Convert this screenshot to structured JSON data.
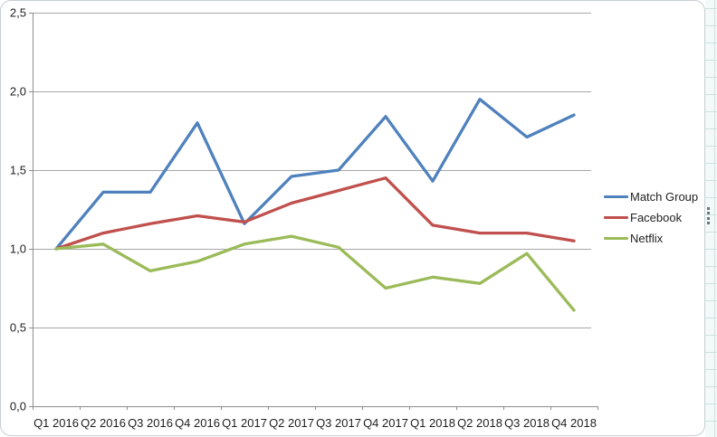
{
  "chart_data": {
    "type": "line",
    "title": "",
    "categories": [
      "Q1 2016",
      "Q2 2016",
      "Q3 2016",
      "Q4 2016",
      "Q1 2017",
      "Q2 2017",
      "Q3 2017",
      "Q4 2017",
      "Q1 2018",
      "Q2 2018",
      "Q3 2018",
      "Q4 2018"
    ],
    "series": [
      {
        "name": "Match Group",
        "color": "#4F81BD",
        "values": [
          1.0,
          1.36,
          1.36,
          1.8,
          1.16,
          1.46,
          1.5,
          1.84,
          1.43,
          1.95,
          1.71,
          1.85
        ]
      },
      {
        "name": "Facebook",
        "color": "#C0504D",
        "values": [
          1.0,
          1.1,
          1.16,
          1.21,
          1.17,
          1.29,
          1.37,
          1.45,
          1.15,
          1.1,
          1.1,
          1.05
        ]
      },
      {
        "name": "Netflix",
        "color": "#9BBB59",
        "values": [
          1.0,
          1.03,
          0.86,
          0.92,
          1.03,
          1.08,
          1.01,
          0.75,
          0.82,
          0.78,
          0.97,
          0.61
        ]
      }
    ],
    "y_tick_labels": [
      "0,0",
      "0,5",
      "1,0",
      "1,5",
      "2,0",
      "2,5"
    ],
    "y_tick_values": [
      0,
      0.5,
      1.0,
      1.5,
      2.0,
      2.5
    ],
    "ylim": [
      0,
      2.5
    ],
    "xlabel": "",
    "ylabel": "",
    "decimal_separator": ",",
    "grid": true,
    "legend_position": "right"
  },
  "colors": {
    "gridline": "#a6a6a6",
    "axis": "#8c8c8c",
    "tick": "#8c8c8c",
    "label_text": "#1f1f1f",
    "frame_border": "#c7ced4",
    "sheet_line": "#cfe1e0",
    "sheet_bg": "#f3f9f9",
    "handle_dot": "#6b7680",
    "background": "#ffffff"
  }
}
